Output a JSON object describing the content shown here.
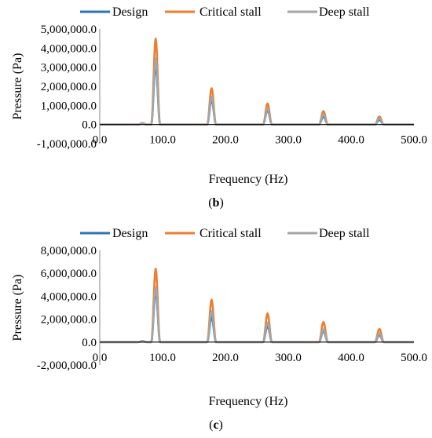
{
  "chart_data": [
    {
      "type": "line",
      "panel_label": "b",
      "xlabel": "Frequency (Hz)",
      "ylabel": "Pressure (Pa)",
      "xlim": [
        0,
        500
      ],
      "ylim": [
        -1000000,
        5000000
      ],
      "xticks": [
        0,
        100,
        200,
        300,
        400,
        500
      ],
      "xtick_labels": [
        "0.0",
        "100.0",
        "200.0",
        "300.0",
        "400.0",
        "500.0"
      ],
      "yticks": [
        -1000000,
        0,
        1000000,
        2000000,
        3000000,
        4000000,
        5000000
      ],
      "ytick_labels": [
        "-1,000,000.0",
        "0.0",
        "1,000,000.0",
        "2,000,000.0",
        "3,000,000.0",
        "4,000,000.0",
        "5,000,000.0"
      ],
      "grid": false,
      "legend_position": "top",
      "series": [
        {
          "name": "Design",
          "color": "#2e75b6",
          "peaks": [
            [
              68,
              50000
            ],
            [
              89,
              3100000
            ],
            [
              178,
              1300000
            ],
            [
              267,
              750000
            ],
            [
              356,
              420000
            ],
            [
              445,
              250000
            ]
          ]
        },
        {
          "name": "Critical stall",
          "color": "#ed7d31",
          "peaks": [
            [
              68,
              80000
            ],
            [
              89,
              4500000
            ],
            [
              178,
              1900000
            ],
            [
              267,
              1100000
            ],
            [
              356,
              700000
            ],
            [
              445,
              420000
            ]
          ]
        },
        {
          "name": "Deep stall",
          "color": "#a5a5a5",
          "peaks": [
            [
              68,
              60000
            ],
            [
              89,
              3450000
            ],
            [
              178,
              1450000
            ],
            [
              267,
              850000
            ],
            [
              356,
              530000
            ],
            [
              445,
              330000
            ]
          ]
        }
      ]
    },
    {
      "type": "line",
      "panel_label": "c",
      "xlabel": "Frequency (Hz)",
      "ylabel": "Pressure (Pa)",
      "xlim": [
        0,
        500
      ],
      "ylim": [
        -2000000,
        8000000
      ],
      "xticks": [
        0,
        100,
        200,
        300,
        400,
        500
      ],
      "xtick_labels": [
        "0.0",
        "100.0",
        "200.0",
        "300.0",
        "400.0",
        "500.0"
      ],
      "yticks": [
        -2000000,
        0,
        2000000,
        4000000,
        6000000,
        8000000
      ],
      "ytick_labels": [
        "-2,000,000.0",
        "0.0",
        "2,000,000.0",
        "4,000,000.0",
        "6,000,000.0",
        "8,000,000.0"
      ],
      "grid": false,
      "legend_position": "top",
      "series": [
        {
          "name": "Design",
          "color": "#2e75b6",
          "peaks": [
            [
              68,
              60000
            ],
            [
              89,
              4400000
            ],
            [
              178,
              2200000
            ],
            [
              267,
              1400000
            ],
            [
              356,
              950000
            ],
            [
              445,
              620000
            ]
          ]
        },
        {
          "name": "Critical stall",
          "color": "#ed7d31",
          "peaks": [
            [
              68,
              100000
            ],
            [
              89,
              6400000
            ],
            [
              178,
              3700000
            ],
            [
              267,
              2500000
            ],
            [
              356,
              1750000
            ],
            [
              445,
              1150000
            ]
          ]
        },
        {
          "name": "Deep stall",
          "color": "#a5a5a5",
          "peaks": [
            [
              68,
              80000
            ],
            [
              89,
              4800000
            ],
            [
              178,
              2700000
            ],
            [
              267,
              1700000
            ],
            [
              356,
              1100000
            ],
            [
              445,
              750000
            ]
          ]
        }
      ]
    }
  ]
}
